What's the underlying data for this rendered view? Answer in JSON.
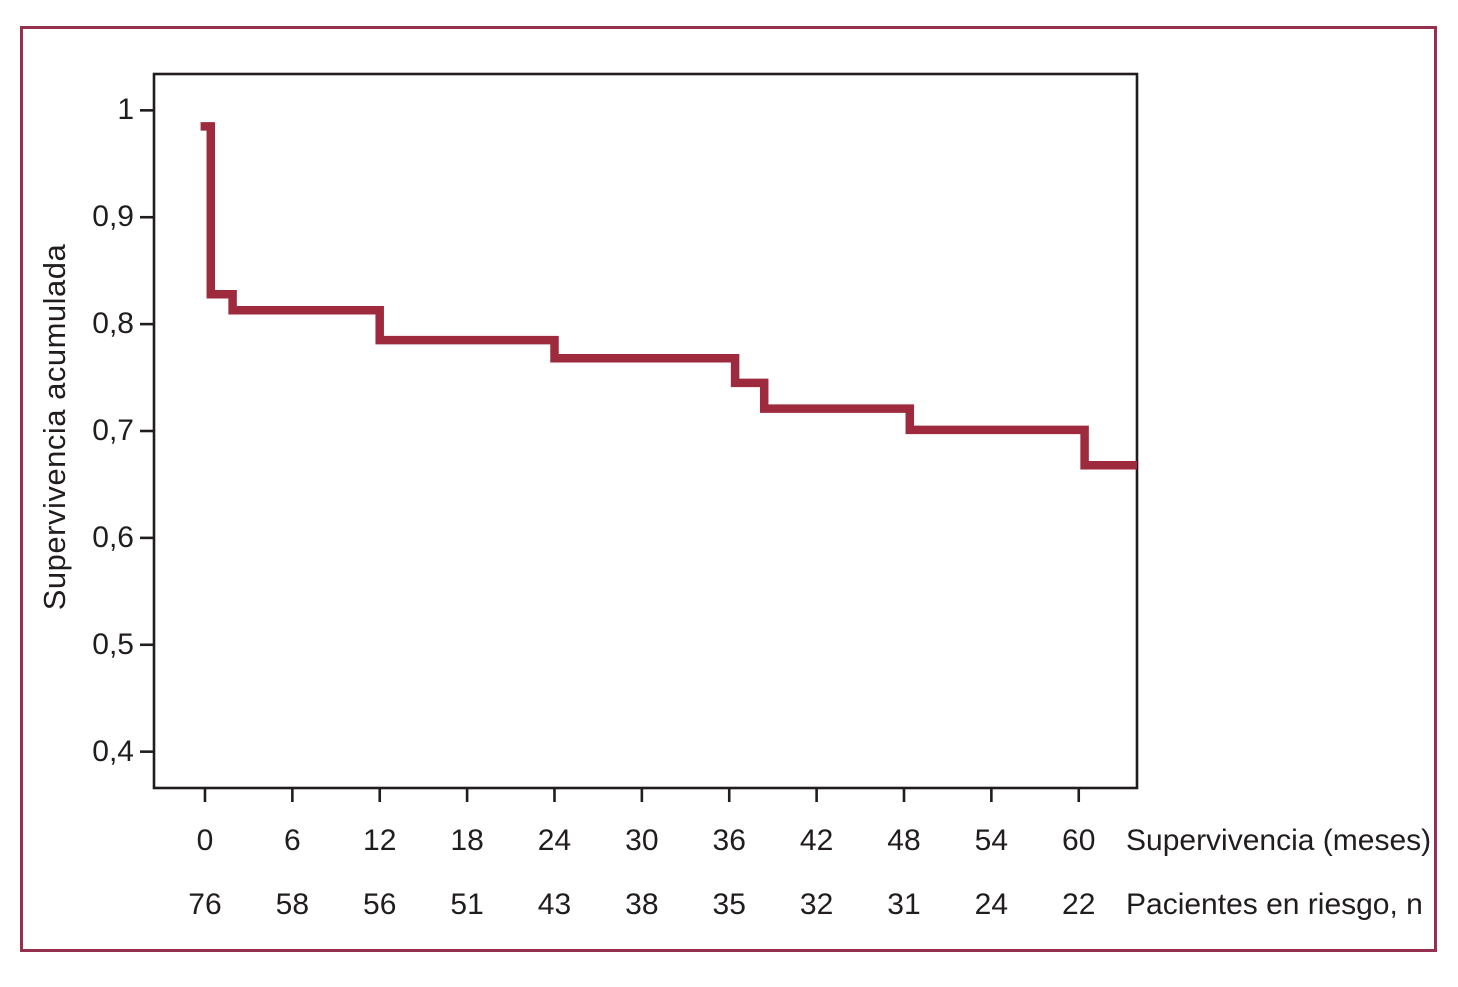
{
  "figure": {
    "outer_border_color": "#96304e",
    "background_color": "#ffffff"
  },
  "chart_data": {
    "type": "line",
    "subtype": "kaplan-meier-step",
    "title": "",
    "xlabel": "Supervivencia (meses)",
    "ylabel": "Supervivencia acumulada",
    "risk_label": "Pacientes en riesgo, n",
    "xlim": [
      -3.5,
      64
    ],
    "ylim": [
      0.366,
      1.034
    ],
    "x_ticks": [
      0,
      6,
      12,
      18,
      24,
      30,
      36,
      42,
      48,
      54,
      60
    ],
    "y_ticks": [
      {
        "value": 1.0,
        "label": "1"
      },
      {
        "value": 0.9,
        "label": "0,9"
      },
      {
        "value": 0.8,
        "label": "0,8"
      },
      {
        "value": 0.7,
        "label": "0,7"
      },
      {
        "value": 0.6,
        "label": "0,6"
      },
      {
        "value": 0.5,
        "label": "0,5"
      },
      {
        "value": 0.4,
        "label": "0,4"
      }
    ],
    "grid": false,
    "legend": false,
    "curve_color": "#9e2a3d",
    "axis_color": "#211d1e",
    "series": [
      {
        "name": "Supervivencia acumulada",
        "step_points": [
          [
            -0.3,
            0.985
          ],
          [
            0.4,
            0.985
          ],
          [
            0.4,
            0.828
          ],
          [
            1.9,
            0.828
          ],
          [
            1.9,
            0.813
          ],
          [
            12,
            0.813
          ],
          [
            12,
            0.785
          ],
          [
            24,
            0.785
          ],
          [
            24,
            0.768
          ],
          [
            36.4,
            0.768
          ],
          [
            36.4,
            0.745
          ],
          [
            38.4,
            0.745
          ],
          [
            38.4,
            0.721
          ],
          [
            48.4,
            0.721
          ],
          [
            48.4,
            0.701
          ],
          [
            60.4,
            0.701
          ],
          [
            60.4,
            0.668
          ],
          [
            64,
            0.668
          ]
        ]
      }
    ],
    "patients_at_risk": {
      "times": [
        0,
        6,
        12,
        18,
        24,
        30,
        36,
        42,
        48,
        54,
        60
      ],
      "counts": [
        76,
        58,
        56,
        51,
        43,
        38,
        35,
        32,
        31,
        24,
        22
      ]
    }
  }
}
